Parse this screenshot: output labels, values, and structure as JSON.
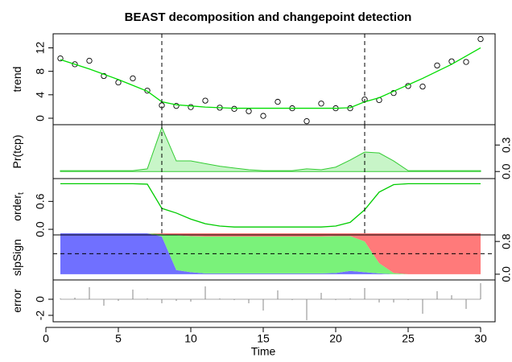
{
  "chart_data": [
    {
      "type": "line",
      "title": "BEAST decomposition and changepoint detection",
      "y_label": "trend",
      "x": [
        1,
        2,
        3,
        4,
        5,
        6,
        7,
        8,
        9,
        10,
        11,
        12,
        13,
        14,
        15,
        16,
        17,
        18,
        19,
        20,
        21,
        22,
        23,
        24,
        25,
        26,
        27,
        28,
        29,
        30
      ],
      "series": [
        {
          "style": "points",
          "color": "#000000",
          "values": [
            10.2,
            9.2,
            9.8,
            7.2,
            6.1,
            6.8,
            4.7,
            2.2,
            2.1,
            1.9,
            3.0,
            1.8,
            1.6,
            1.2,
            0.4,
            2.8,
            1.7,
            -0.5,
            2.5,
            1.7,
            1.7,
            3.2,
            3.1,
            4.3,
            5.5,
            5.4,
            9.0,
            9.7,
            9.6,
            13.5
          ]
        },
        {
          "style": "line",
          "color": "#00dd00",
          "values": [
            10.0,
            9.2,
            8.4,
            7.5,
            6.6,
            5.6,
            4.6,
            2.8,
            2.3,
            2.1,
            1.9,
            1.8,
            1.7,
            1.7,
            1.7,
            1.7,
            1.7,
            1.7,
            1.7,
            1.7,
            1.8,
            2.8,
            3.5,
            4.6,
            5.7,
            6.8,
            8.0,
            9.2,
            10.6,
            12.0
          ]
        }
      ],
      "xlim": [
        0.5,
        31
      ],
      "ylim": [
        -1.1,
        14.4
      ],
      "yticks": [
        0,
        4,
        8,
        12
      ],
      "y_axis_side": "left",
      "changepoints": [
        8,
        22
      ]
    },
    {
      "type": "area",
      "y_label": "Pr(tcp)",
      "x": [
        1,
        2,
        3,
        4,
        5,
        6,
        7,
        8,
        9,
        10,
        11,
        12,
        13,
        14,
        15,
        16,
        17,
        18,
        19,
        20,
        21,
        22,
        23,
        24,
        25,
        26,
        27,
        28,
        29,
        30
      ],
      "values": [
        0.01,
        0.01,
        0.01,
        0.01,
        0.01,
        0.01,
        0.03,
        0.5,
        0.12,
        0.12,
        0.09,
        0.06,
        0.04,
        0.02,
        0.01,
        0.01,
        0.01,
        0.03,
        0.02,
        0.05,
        0.13,
        0.22,
        0.21,
        0.12,
        0.01,
        0.01,
        0.01,
        0.01,
        0.01,
        0.01
      ],
      "color": "#33cc33",
      "fill": "#c8f5c8",
      "xlim": [
        0.5,
        31
      ],
      "ylim": [
        -0.08,
        0.53
      ],
      "yticks": [
        {
          "value": 0,
          "label": "0.0"
        },
        0.3
      ],
      "y_axis_side": "right",
      "changepoints": [
        8,
        22
      ]
    },
    {
      "type": "line",
      "y_label": "order",
      "y_label_subscript": "t",
      "x": [
        1,
        2,
        3,
        4,
        5,
        6,
        7,
        8,
        9,
        10,
        11,
        12,
        13,
        14,
        15,
        16,
        17,
        18,
        19,
        20,
        21,
        22,
        23,
        24,
        25,
        26,
        27,
        28,
        29,
        30
      ],
      "series": [
        {
          "style": "line",
          "color": "#00cc00",
          "values": [
            0.98,
            0.98,
            0.98,
            0.98,
            0.98,
            0.98,
            0.97,
            0.45,
            0.35,
            0.22,
            0.12,
            0.07,
            0.05,
            0.05,
            0.05,
            0.05,
            0.05,
            0.05,
            0.05,
            0.07,
            0.15,
            0.42,
            0.8,
            0.96,
            0.98,
            0.98,
            0.98,
            0.98,
            0.98,
            0.98
          ]
        }
      ],
      "xlim": [
        0.5,
        31
      ],
      "ylim": [
        -0.12,
        1.09
      ],
      "yticks": [
        {
          "value": 0,
          "label": "0.0"
        },
        0.6
      ],
      "y_axis_side": "left",
      "changepoints": [
        8,
        22
      ]
    },
    {
      "type": "stacked_area",
      "y_label": "slpSign",
      "x": [
        1,
        2,
        3,
        4,
        5,
        6,
        7,
        8,
        9,
        10,
        11,
        12,
        13,
        14,
        15,
        16,
        17,
        18,
        19,
        20,
        21,
        22,
        23,
        24,
        25,
        26,
        27,
        28,
        29,
        30
      ],
      "series": [
        {
          "color": "#7070ff",
          "values": [
            1,
            1,
            1,
            1,
            1,
            1,
            1,
            0.92,
            0.1,
            0.05,
            0.02,
            0.02,
            0.02,
            0.02,
            0.02,
            0.02,
            0.02,
            0.02,
            0.02,
            0.03,
            0.08,
            0.05,
            0.02,
            0,
            0,
            0,
            0,
            0,
            0,
            0
          ]
        },
        {
          "color": "#7af27a",
          "values": [
            0,
            0,
            0,
            0,
            0,
            0,
            0,
            0.06,
            0.85,
            0.88,
            0.9,
            0.9,
            0.9,
            0.9,
            0.9,
            0.9,
            0.9,
            0.9,
            0.9,
            0.9,
            0.85,
            0.75,
            0.25,
            0.03,
            0,
            0,
            0,
            0,
            0,
            0
          ]
        },
        {
          "color": "#ff7a7a",
          "values": [
            0,
            0,
            0,
            0,
            0,
            0,
            0,
            0.02,
            0.05,
            0.07,
            0.08,
            0.08,
            0.08,
            0.08,
            0.08,
            0.08,
            0.08,
            0.08,
            0.08,
            0.07,
            0.07,
            0.2,
            0.73,
            0.97,
            1,
            1,
            1,
            1,
            1,
            1
          ]
        }
      ],
      "xlim": [
        0.5,
        31
      ],
      "ylim": [
        -0.14,
        0.96
      ],
      "yticks": [
        {
          "value": 0,
          "label": "0.0"
        },
        0.8
      ],
      "y_axis_side": "right",
      "reference_line": 0.5
    },
    {
      "type": "spike",
      "y_label": "error",
      "x_label": "Time",
      "x": [
        1,
        2,
        3,
        4,
        5,
        6,
        7,
        8,
        9,
        10,
        11,
        12,
        13,
        14,
        15,
        16,
        17,
        18,
        19,
        20,
        21,
        22,
        23,
        24,
        25,
        26,
        27,
        28,
        29,
        30
      ],
      "values": [
        0.1,
        0.2,
        1.5,
        -0.8,
        -0.2,
        1.2,
        0.1,
        -0.5,
        -0.2,
        -0.3,
        1.6,
        0.1,
        -0.1,
        -0.5,
        -1.4,
        1.1,
        -0.1,
        -2.6,
        0.8,
        -0.1,
        0.1,
        1.4,
        -0.4,
        -0.4,
        -0.1,
        -1.8,
        1.0,
        0.5,
        -1.2,
        2.0
      ],
      "color": "#888888",
      "xlim": [
        0.5,
        31
      ],
      "ylim": [
        -2.8,
        2.4
      ],
      "yticks": [
        -2,
        0
      ],
      "y_axis_side": "left",
      "xticks": [
        0,
        5,
        10,
        15,
        20,
        25,
        30
      ]
    }
  ]
}
